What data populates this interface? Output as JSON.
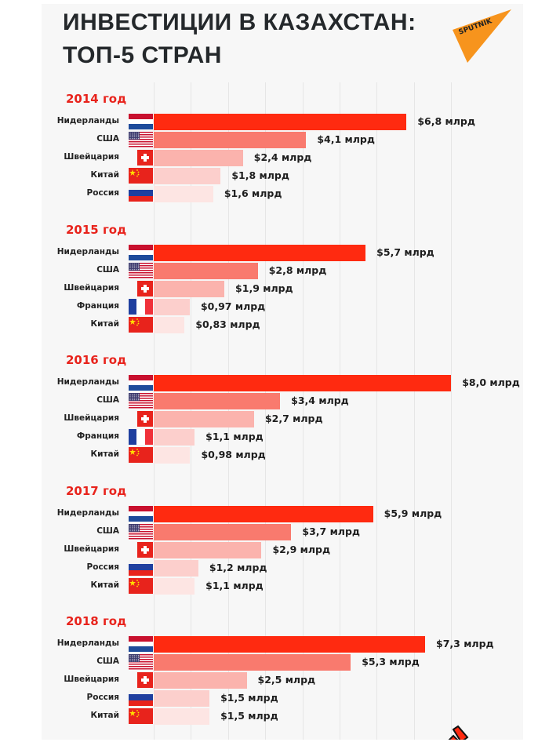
{
  "title": {
    "line1": "ИНВЕСТИЦИИ В КАЗАХСТАН:",
    "line2": "ТОП-5 СТРАН"
  },
  "logo": {
    "text": "SPUTNIK",
    "color": "#f7941d"
  },
  "colors": {
    "rank": [
      "#ff2a10",
      "#f97a6e",
      "#fbb3ad",
      "#fccfcc",
      "#fde5e3"
    ],
    "year_heading": "#e8231c",
    "panel": "#f7f7f7",
    "grid": "#e6e6e6"
  },
  "chart_data": {
    "type": "bar",
    "orientation": "horizontal",
    "title": "ИНВЕСТИЦИИ В КАЗАХСТАН: ТОП-5 СТРАН",
    "unit": "млрд $",
    "xlim": [
      0,
      8
    ],
    "grid": true,
    "groups": [
      {
        "label": "2014 год",
        "items": [
          {
            "country": "Нидерланды",
            "flag": "netherlands-flag",
            "value": 6.8,
            "label": "$6,8 млрд"
          },
          {
            "country": "США",
            "flag": "usa-flag",
            "value": 4.1,
            "label": "$4,1 млрд"
          },
          {
            "country": "Швейцария",
            "flag": "switzerland-flag",
            "value": 2.4,
            "label": "$2,4 млрд"
          },
          {
            "country": "Китай",
            "flag": "china-flag",
            "value": 1.8,
            "label": "$1,8 млрд"
          },
          {
            "country": "Россия",
            "flag": "russia-flag",
            "value": 1.6,
            "label": "$1,6 млрд"
          }
        ]
      },
      {
        "label": "2015 год",
        "items": [
          {
            "country": "Нидерланды",
            "flag": "netherlands-flag",
            "value": 5.7,
            "label": "$5,7 млрд"
          },
          {
            "country": "США",
            "flag": "usa-flag",
            "value": 2.8,
            "label": "$2,8 млрд"
          },
          {
            "country": "Швейцария",
            "flag": "switzerland-flag",
            "value": 1.9,
            "label": "$1,9 млрд"
          },
          {
            "country": "Франция",
            "flag": "france-flag",
            "value": 0.97,
            "label": "$0,97 млрд"
          },
          {
            "country": "Китай",
            "flag": "china-flag",
            "value": 0.83,
            "label": "$0,83 млрд"
          }
        ]
      },
      {
        "label": "2016 год",
        "items": [
          {
            "country": "Нидерланды",
            "flag": "netherlands-flag",
            "value": 8.0,
            "label": "$8,0 млрд"
          },
          {
            "country": "США",
            "flag": "usa-flag",
            "value": 3.4,
            "label": "$3,4 млрд"
          },
          {
            "country": "Швейцария",
            "flag": "switzerland-flag",
            "value": 2.7,
            "label": "$2,7 млрд"
          },
          {
            "country": "Франция",
            "flag": "france-flag",
            "value": 1.1,
            "label": "$1,1 млрд"
          },
          {
            "country": "Китай",
            "flag": "china-flag",
            "value": 0.98,
            "label": "$0,98 млрд"
          }
        ]
      },
      {
        "label": "2017 год",
        "items": [
          {
            "country": "Нидерланды",
            "flag": "netherlands-flag",
            "value": 5.9,
            "label": "$5,9 млрд"
          },
          {
            "country": "США",
            "flag": "usa-flag",
            "value": 3.7,
            "label": "$3,7 млрд"
          },
          {
            "country": "Швейцария",
            "flag": "switzerland-flag",
            "value": 2.9,
            "label": "$2,9 млрд"
          },
          {
            "country": "Россия",
            "flag": "russia-flag",
            "value": 1.2,
            "label": "$1,2 млрд"
          },
          {
            "country": "Китай",
            "flag": "china-flag",
            "value": 1.1,
            "label": "$1,1 млрд"
          }
        ]
      },
      {
        "label": "2018 год",
        "items": [
          {
            "country": "Нидерланды",
            "flag": "netherlands-flag",
            "value": 7.3,
            "label": "$7,3 млрд"
          },
          {
            "country": "США",
            "flag": "usa-flag",
            "value": 5.3,
            "label": "$5,3 млрд"
          },
          {
            "country": "Швейцария",
            "flag": "switzerland-flag",
            "value": 2.5,
            "label": "$2,5 млрд"
          },
          {
            "country": "Россия",
            "flag": "russia-flag",
            "value": 1.5,
            "label": "$1,5 млрд"
          },
          {
            "country": "Китай",
            "flag": "china-flag",
            "value": 1.5,
            "label": "$1,5 млрд"
          }
        ]
      }
    ]
  }
}
